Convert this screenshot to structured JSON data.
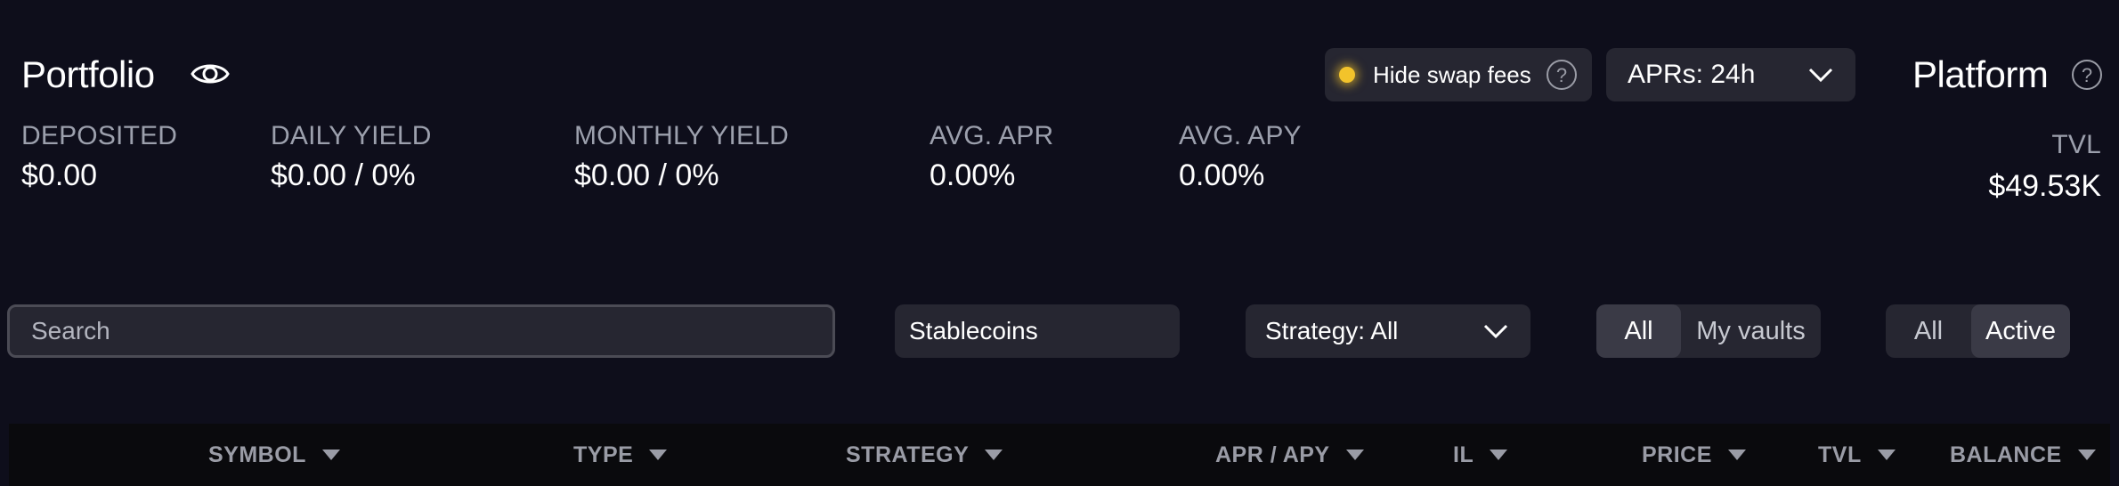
{
  "portfolio": {
    "title": "Portfolio",
    "stats": [
      {
        "label": "DEPOSITED",
        "value": "$0.00"
      },
      {
        "label": "DAILY YIELD",
        "value": "$0.00 / 0%"
      },
      {
        "label": "MONTHLY YIELD",
        "value": "$0.00 / 0%"
      },
      {
        "label": "AVG. APR",
        "value": "0.00%"
      },
      {
        "label": "AVG. APY",
        "value": "0.00%"
      }
    ]
  },
  "controls": {
    "hide_swap_fees": "Hide swap fees",
    "apr_period": "APRs: 24h"
  },
  "platform": {
    "title": "Platform",
    "tvl_label": "TVL",
    "tvl_value": "$49.53K"
  },
  "filters": {
    "search_placeholder": "Search",
    "stablecoins": "Stablecoins",
    "strategy": "Strategy: All",
    "vault_scope": [
      "All",
      "My vaults"
    ],
    "vault_scope_selected": "All",
    "status": [
      "All",
      "Active"
    ],
    "status_selected": "Active"
  },
  "table": {
    "columns": [
      "SYMBOL",
      "TYPE",
      "STRATEGY",
      "APR / APY",
      "IL",
      "PRICE",
      "TVL",
      "BALANCE"
    ]
  },
  "colors": {
    "background": "#0e0e1b",
    "panel": "#262631",
    "toggle_dot": "#f2c32b",
    "table_header_bg": "#0a0a0d"
  },
  "icons": {
    "portfolio_visibility": "eye-icon",
    "help": "question-circle-icon",
    "dropdown": "chevron-down-icon",
    "sort": "caret-down-icon"
  }
}
